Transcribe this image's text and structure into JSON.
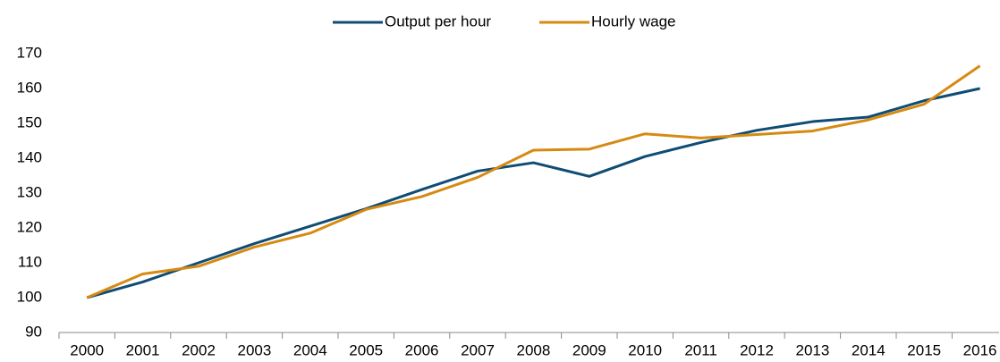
{
  "chart_data": {
    "type": "line",
    "categories": [
      "2000",
      "2001",
      "2002",
      "2003",
      "2004",
      "2005",
      "2006",
      "2007",
      "2008",
      "2009",
      "2010",
      "2011",
      "2012",
      "2013",
      "2014",
      "2015",
      "2016"
    ],
    "series": [
      {
        "name": "Output per hour",
        "color": "#0f4c75",
        "values": [
          100,
          104.5,
          110,
          115.5,
          120.5,
          125.5,
          131,
          136.3,
          138.7,
          134.8,
          140.5,
          144.5,
          148,
          150.5,
          151.8,
          156.5,
          160
        ]
      },
      {
        "name": "Hourly wage",
        "color": "#d68a12",
        "values": [
          100,
          106.8,
          109,
          114.5,
          118.5,
          125.3,
          129,
          134.5,
          142.3,
          142.6,
          147,
          145.8,
          146.8,
          147.8,
          151,
          155.5,
          166.5
        ]
      }
    ],
    "ylim": [
      90,
      170
    ],
    "yticks": [
      90,
      100,
      110,
      120,
      130,
      140,
      150,
      160,
      170
    ],
    "legend": "top",
    "grid": false
  }
}
